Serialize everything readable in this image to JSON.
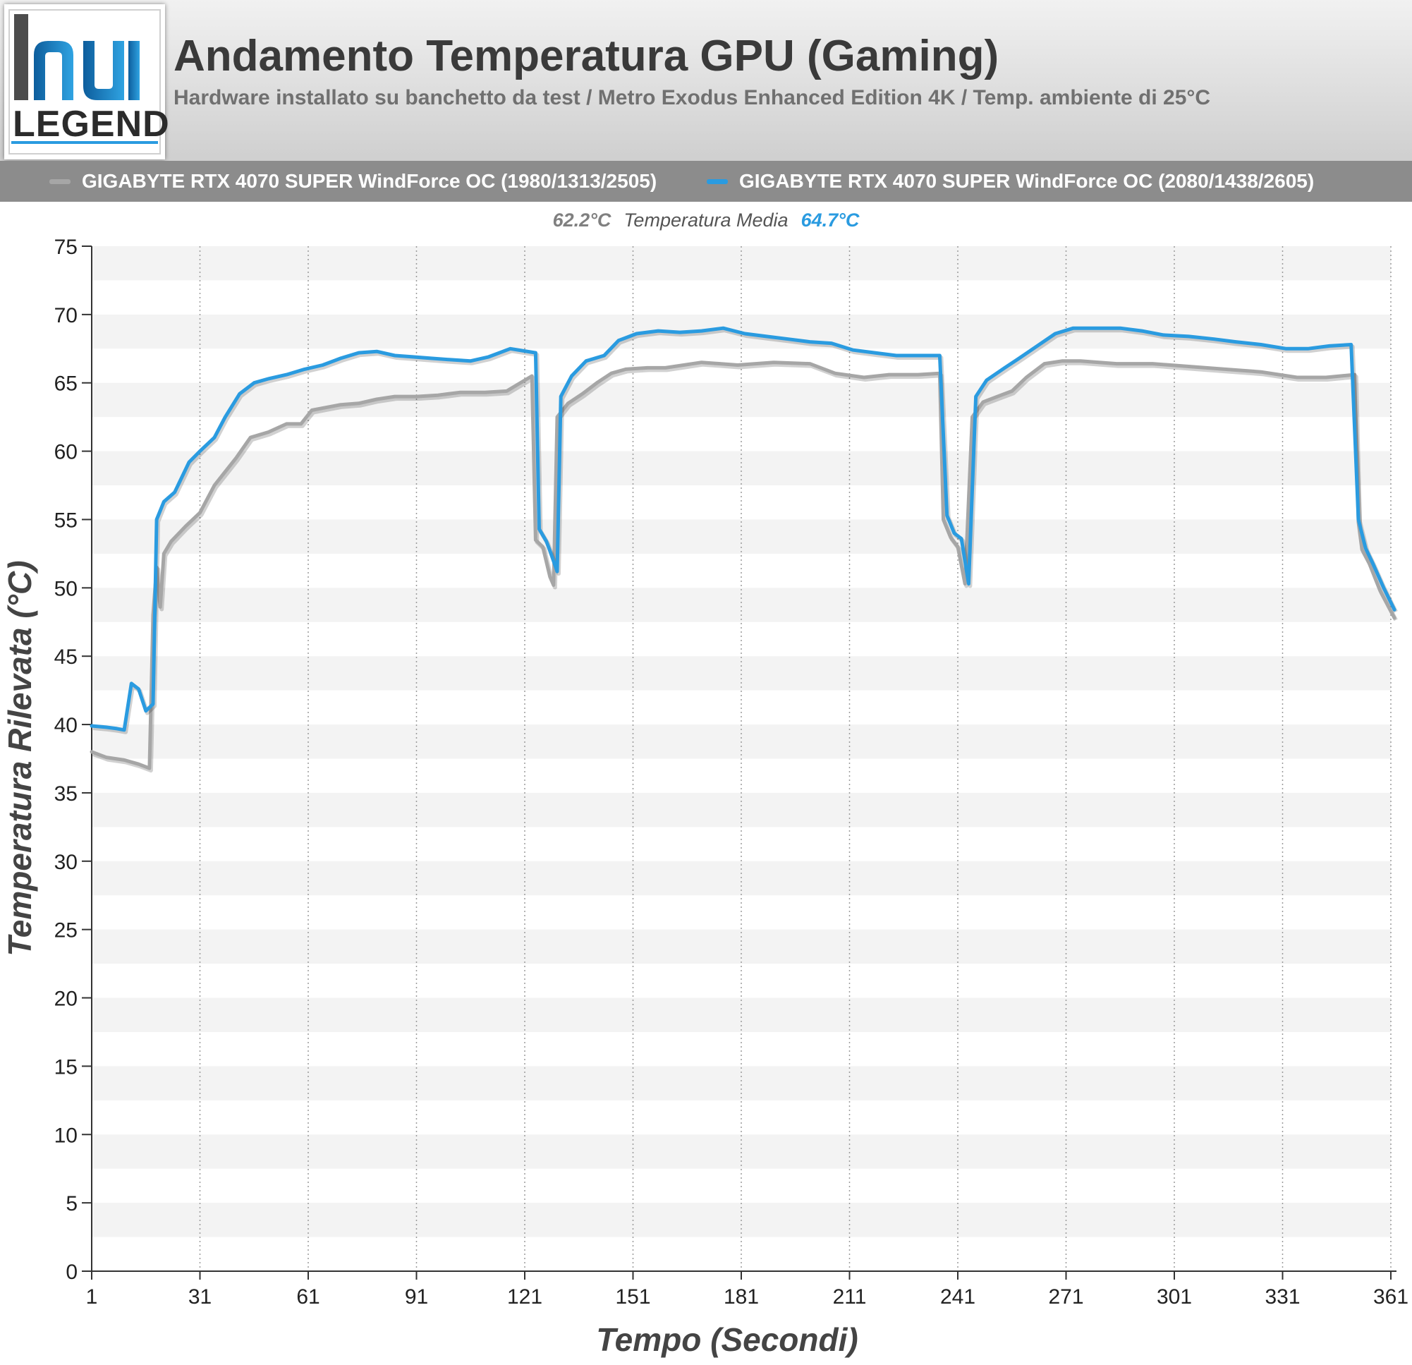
{
  "logo": {
    "top_text": "hu",
    "bottom_text": "LEGEND"
  },
  "header": {
    "title": "Andamento Temperatura GPU (Gaming)",
    "subtitle": "Hardware installato su banchetto da test / Metro Exodus Enhanced Edition 4K / Temp. ambiente di 25°C"
  },
  "legend": [
    {
      "label": "GIGABYTE RTX 4070 SUPER WindForce OC (1980/1313/2505)",
      "color": "#a6a6a6"
    },
    {
      "label": "GIGABYTE RTX 4070 SUPER WindForce OC (2080/1438/2605)",
      "color": "#2a9be0"
    }
  ],
  "averages": {
    "series_a": "62.2°C",
    "label": "Temperatura Media",
    "series_b": "64.7°C"
  },
  "chart_data": {
    "type": "line",
    "xlabel": "Tempo (Secondi)",
    "ylabel": "Temperatura Rilevata (°C)",
    "xlim": [
      1,
      361
    ],
    "ylim": [
      0,
      75
    ],
    "xticks": [
      1,
      31,
      61,
      91,
      121,
      151,
      181,
      211,
      241,
      271,
      301,
      331,
      361
    ],
    "yticks": [
      0,
      5,
      10,
      15,
      20,
      25,
      30,
      35,
      40,
      45,
      50,
      55,
      60,
      65,
      70,
      75
    ],
    "grid": {
      "horizontal_bands": true,
      "vertical_dotted": true
    },
    "series": [
      {
        "name": "GIGABYTE RTX 4070 SUPER WindForce OC (1980/1313/2505)",
        "color": "#a6a6a6",
        "points": [
          [
            1,
            38
          ],
          [
            5,
            37.6
          ],
          [
            10,
            37.4
          ],
          [
            14,
            37.1
          ],
          [
            17,
            36.8
          ],
          [
            18,
            48
          ],
          [
            19,
            51.5
          ],
          [
            20,
            48.6
          ],
          [
            21,
            52.5
          ],
          [
            23,
            53.4
          ],
          [
            27,
            54.5
          ],
          [
            31,
            55.5
          ],
          [
            35,
            57.5
          ],
          [
            38,
            58.5
          ],
          [
            41,
            59.5
          ],
          [
            45,
            61
          ],
          [
            50,
            61.4
          ],
          [
            55,
            62
          ],
          [
            59,
            62
          ],
          [
            62,
            63
          ],
          [
            66,
            63.2
          ],
          [
            70,
            63.4
          ],
          [
            75,
            63.5
          ],
          [
            80,
            63.8
          ],
          [
            85,
            64
          ],
          [
            91,
            64
          ],
          [
            97,
            64.1
          ],
          [
            103,
            64.3
          ],
          [
            110,
            64.3
          ],
          [
            116,
            64.4
          ],
          [
            123,
            65.5
          ],
          [
            124,
            53.5
          ],
          [
            126,
            53
          ],
          [
            128,
            50.8
          ],
          [
            129,
            50.2
          ],
          [
            130,
            62.5
          ],
          [
            133,
            63.5
          ],
          [
            137,
            64.2
          ],
          [
            141,
            65
          ],
          [
            145,
            65.7
          ],
          [
            149,
            66
          ],
          [
            155,
            66.1
          ],
          [
            160,
            66.1
          ],
          [
            170,
            66.5
          ],
          [
            180,
            66.3
          ],
          [
            190,
            66.5
          ],
          [
            200,
            66.4
          ],
          [
            207,
            65.7
          ],
          [
            215,
            65.4
          ],
          [
            222,
            65.6
          ],
          [
            230,
            65.6
          ],
          [
            236,
            65.7
          ],
          [
            237,
            55
          ],
          [
            239,
            53.7
          ],
          [
            241,
            53
          ],
          [
            243,
            50.3
          ],
          [
            245,
            62.5
          ],
          [
            248,
            63.6
          ],
          [
            252,
            64
          ],
          [
            256,
            64.4
          ],
          [
            260,
            65.4
          ],
          [
            265,
            66.4
          ],
          [
            270,
            66.6
          ],
          [
            275,
            66.6
          ],
          [
            285,
            66.4
          ],
          [
            295,
            66.4
          ],
          [
            305,
            66.2
          ],
          [
            315,
            66
          ],
          [
            325,
            65.8
          ],
          [
            335,
            65.4
          ],
          [
            343,
            65.4
          ],
          [
            351,
            65.6
          ],
          [
            352,
            54.8
          ],
          [
            353,
            52.8
          ],
          [
            355,
            51.8
          ],
          [
            358,
            49.8
          ],
          [
            362,
            47.8
          ]
        ]
      },
      {
        "name": "GIGABYTE RTX 4070 SUPER WindForce OC (2080/1438/2605)",
        "color": "#2a9be0",
        "points": [
          [
            1,
            39.9
          ],
          [
            5,
            39.8
          ],
          [
            8,
            39.7
          ],
          [
            10,
            39.6
          ],
          [
            12,
            43
          ],
          [
            14,
            42.6
          ],
          [
            16,
            41
          ],
          [
            18,
            41.5
          ],
          [
            19,
            55
          ],
          [
            21,
            56.3
          ],
          [
            24,
            57
          ],
          [
            28,
            59.2
          ],
          [
            31,
            60
          ],
          [
            35,
            61
          ],
          [
            38,
            62.5
          ],
          [
            42,
            64.2
          ],
          [
            46,
            65
          ],
          [
            50,
            65.3
          ],
          [
            55,
            65.6
          ],
          [
            60,
            66
          ],
          [
            65,
            66.3
          ],
          [
            70,
            66.8
          ],
          [
            75,
            67.2
          ],
          [
            80,
            67.3
          ],
          [
            85,
            67
          ],
          [
            90,
            66.9
          ],
          [
            95,
            66.8
          ],
          [
            100,
            66.7
          ],
          [
            106,
            66.6
          ],
          [
            111,
            66.9
          ],
          [
            117,
            67.5
          ],
          [
            124,
            67.2
          ],
          [
            125,
            54.3
          ],
          [
            127,
            53.4
          ],
          [
            128,
            52.7
          ],
          [
            130,
            51.2
          ],
          [
            131,
            64
          ],
          [
            134,
            65.5
          ],
          [
            138,
            66.6
          ],
          [
            143,
            67
          ],
          [
            147,
            68.1
          ],
          [
            152,
            68.6
          ],
          [
            158,
            68.8
          ],
          [
            164,
            68.7
          ],
          [
            170,
            68.8
          ],
          [
            176,
            69
          ],
          [
            182,
            68.6
          ],
          [
            188,
            68.4
          ],
          [
            194,
            68.2
          ],
          [
            200,
            68
          ],
          [
            206,
            67.9
          ],
          [
            212,
            67.4
          ],
          [
            218,
            67.2
          ],
          [
            224,
            67
          ],
          [
            230,
            67
          ],
          [
            236,
            67
          ],
          [
            238,
            55.3
          ],
          [
            240,
            54
          ],
          [
            242,
            53.6
          ],
          [
            244,
            50.3
          ],
          [
            246,
            64
          ],
          [
            249,
            65.2
          ],
          [
            254,
            66.1
          ],
          [
            258,
            66.8
          ],
          [
            263,
            67.7
          ],
          [
            268,
            68.6
          ],
          [
            273,
            69
          ],
          [
            280,
            69
          ],
          [
            286,
            69
          ],
          [
            292,
            68.8
          ],
          [
            298,
            68.5
          ],
          [
            305,
            68.4
          ],
          [
            312,
            68.2
          ],
          [
            318,
            68
          ],
          [
            325,
            67.8
          ],
          [
            332,
            67.5
          ],
          [
            338,
            67.5
          ],
          [
            344,
            67.7
          ],
          [
            350,
            67.8
          ],
          [
            352,
            55
          ],
          [
            354,
            52.9
          ],
          [
            356,
            51.8
          ],
          [
            359,
            50
          ],
          [
            362,
            48.4
          ]
        ]
      }
    ]
  }
}
